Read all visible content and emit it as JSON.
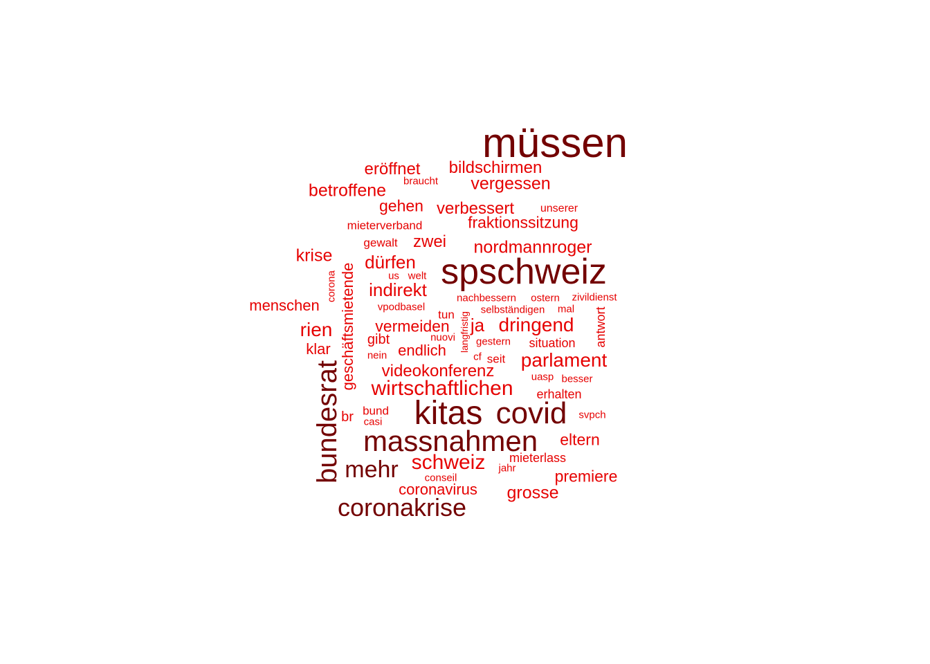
{
  "colors": {
    "dark": "#730000",
    "mid": "#8b0000",
    "bright": "#e60000"
  },
  "words": [
    {
      "text": "müssen",
      "weight": 10,
      "tone": "dark"
    },
    {
      "text": "spschweiz",
      "weight": 9,
      "tone": "dark"
    },
    {
      "text": "kitas",
      "weight": 8,
      "tone": "dark"
    },
    {
      "text": "covid",
      "weight": 7,
      "tone": "dark"
    },
    {
      "text": "massnahmen",
      "weight": 7,
      "tone": "dark"
    },
    {
      "text": "bundesrat",
      "weight": 6,
      "tone": "dark"
    },
    {
      "text": "coronakrise",
      "weight": 5,
      "tone": "dark"
    },
    {
      "text": "mehr",
      "weight": 5,
      "tone": "dark"
    },
    {
      "text": "schweiz",
      "weight": 4,
      "tone": "bright"
    },
    {
      "text": "wirtschaftlichen",
      "weight": 4,
      "tone": "bright"
    },
    {
      "text": "parlament",
      "weight": 4,
      "tone": "bright"
    },
    {
      "text": "dringend",
      "weight": 4,
      "tone": "bright"
    },
    {
      "text": "rien",
      "weight": 4,
      "tone": "bright"
    },
    {
      "text": "eröffnet",
      "weight": 3,
      "tone": "bright"
    },
    {
      "text": "bildschirmen",
      "weight": 3,
      "tone": "bright"
    },
    {
      "text": "betroffene",
      "weight": 3,
      "tone": "bright"
    },
    {
      "text": "vergessen",
      "weight": 3,
      "tone": "bright"
    },
    {
      "text": "gehen",
      "weight": 3,
      "tone": "bright"
    },
    {
      "text": "verbessert",
      "weight": 3,
      "tone": "bright"
    },
    {
      "text": "fraktionssitzung",
      "weight": 3,
      "tone": "bright"
    },
    {
      "text": "zwei",
      "weight": 3,
      "tone": "bright"
    },
    {
      "text": "nordmannroger",
      "weight": 3,
      "tone": "bright"
    },
    {
      "text": "krise",
      "weight": 3,
      "tone": "bright"
    },
    {
      "text": "dürfen",
      "weight": 3,
      "tone": "bright"
    },
    {
      "text": "indirekt",
      "weight": 3,
      "tone": "bright"
    },
    {
      "text": "menschen",
      "weight": 3,
      "tone": "bright"
    },
    {
      "text": "geschäftsmietende",
      "weight": 3,
      "tone": "bright"
    },
    {
      "text": "vermeiden",
      "weight": 3,
      "tone": "bright"
    },
    {
      "text": "ja",
      "weight": 3,
      "tone": "bright"
    },
    {
      "text": "klar",
      "weight": 3,
      "tone": "bright"
    },
    {
      "text": "gibt",
      "weight": 2,
      "tone": "bright"
    },
    {
      "text": "endlich",
      "weight": 3,
      "tone": "bright"
    },
    {
      "text": "videokonferenz",
      "weight": 3,
      "tone": "bright"
    },
    {
      "text": "eltern",
      "weight": 3,
      "tone": "bright"
    },
    {
      "text": "premiere",
      "weight": 3,
      "tone": "bright"
    },
    {
      "text": "grosse",
      "weight": 3,
      "tone": "bright"
    },
    {
      "text": "coronavirus",
      "weight": 3,
      "tone": "bright"
    },
    {
      "text": "br",
      "weight": 2,
      "tone": "bright"
    },
    {
      "text": "antwort",
      "weight": 2,
      "tone": "bright"
    },
    {
      "text": "situation",
      "weight": 2,
      "tone": "bright"
    },
    {
      "text": "erhalten",
      "weight": 2,
      "tone": "bright"
    },
    {
      "text": "mieterlass",
      "weight": 2,
      "tone": "bright"
    },
    {
      "text": "seit",
      "weight": 2,
      "tone": "bright"
    },
    {
      "text": "tun",
      "weight": 2,
      "tone": "bright"
    },
    {
      "text": "braucht",
      "weight": 1,
      "tone": "bright"
    },
    {
      "text": "unserer",
      "weight": 1,
      "tone": "bright"
    },
    {
      "text": "mieterverband",
      "weight": 1,
      "tone": "bright"
    },
    {
      "text": "gewalt",
      "weight": 1,
      "tone": "bright"
    },
    {
      "text": "us",
      "weight": 1,
      "tone": "bright"
    },
    {
      "text": "welt",
      "weight": 1,
      "tone": "bright"
    },
    {
      "text": "corona",
      "weight": 1,
      "tone": "bright"
    },
    {
      "text": "nachbessern",
      "weight": 1,
      "tone": "bright"
    },
    {
      "text": "ostern",
      "weight": 1,
      "tone": "bright"
    },
    {
      "text": "zivildienst",
      "weight": 1,
      "tone": "bright"
    },
    {
      "text": "vpodbasel",
      "weight": 1,
      "tone": "bright"
    },
    {
      "text": "selbständigen",
      "weight": 1,
      "tone": "bright"
    },
    {
      "text": "mal",
      "weight": 1,
      "tone": "bright"
    },
    {
      "text": "langfristig",
      "weight": 1,
      "tone": "bright"
    },
    {
      "text": "nuovi",
      "weight": 1,
      "tone": "bright"
    },
    {
      "text": "gestern",
      "weight": 1,
      "tone": "bright"
    },
    {
      "text": "nein",
      "weight": 1,
      "tone": "bright"
    },
    {
      "text": "cf",
      "weight": 1,
      "tone": "bright"
    },
    {
      "text": "uasp",
      "weight": 1,
      "tone": "bright"
    },
    {
      "text": "besser",
      "weight": 1,
      "tone": "bright"
    },
    {
      "text": "bund",
      "weight": 1,
      "tone": "bright"
    },
    {
      "text": "casi",
      "weight": 1,
      "tone": "bright"
    },
    {
      "text": "svpch",
      "weight": 1,
      "tone": "bright"
    },
    {
      "text": "jahr",
      "weight": 1,
      "tone": "bright"
    },
    {
      "text": "conseil",
      "weight": 1,
      "tone": "bright"
    }
  ]
}
